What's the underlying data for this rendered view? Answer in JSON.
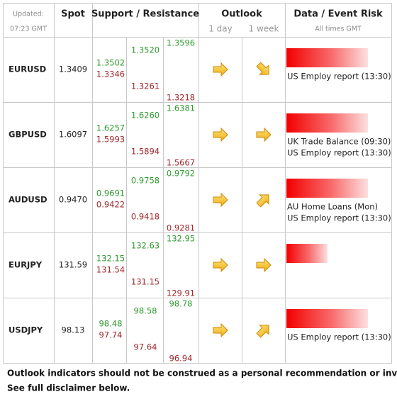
{
  "header": {
    "updated_label": "Updated:",
    "time": "07:23 GMT",
    "spot": "Spot",
    "support_resistance": "Support / Resistance",
    "outlook": "Outlook",
    "outlook_1day": "1 day",
    "outlook_1week": "1 week",
    "event_risk": "Data / Event Risk",
    "times_note": "All times GMT"
  },
  "rows": [
    {
      "pair": "EURUSD",
      "spot": "1.3409",
      "levels": [
        [
          "1.3502",
          "1.3346"
        ],
        [
          "1.3520",
          "1.3261"
        ],
        [
          "1.3596",
          "1.3218"
        ]
      ],
      "events": [
        "US Employ report (13:30)"
      ]
    },
    {
      "pair": "GBPUSD",
      "spot": "1.6097",
      "levels": [
        [
          "1.6257",
          "1.5993"
        ],
        [
          "1.6260",
          "1.5894"
        ],
        [
          "1.6381",
          "1.5667"
        ]
      ],
      "events": [
        "UK Trade Balance (09:30)",
        "US Employ report (13:30)"
      ]
    },
    {
      "pair": "AUDUSD",
      "spot": "0.9470",
      "levels": [
        [
          "0.9691",
          "0.9422"
        ],
        [
          "0.9758",
          "0.9418"
        ],
        [
          "0.9792",
          "0.9281"
        ]
      ],
      "events": [
        "AU Home Loans (Mon)",
        "US Employ report (13:30)"
      ]
    },
    {
      "pair": "EURJPY",
      "spot": "131.59",
      "levels": [
        [
          "132.15",
          "131.54"
        ],
        [
          "132.63",
          "131.15"
        ],
        [
          "132.95",
          "129.91"
        ]
      ],
      "events": []
    },
    {
      "pair": "USDJPY",
      "spot": "98.13",
      "levels": [
        [
          "98.48",
          "97.74"
        ],
        [
          "98.58",
          "97.64"
        ],
        [
          "98.78",
          "96.94"
        ]
      ],
      "events": [
        "US Employ report (13:30)"
      ]
    }
  ],
  "footer": [
    "Outlook indicators should not be construed as a personal recommendation or investment advice.",
    "See full disclaimer below."
  ]
}
